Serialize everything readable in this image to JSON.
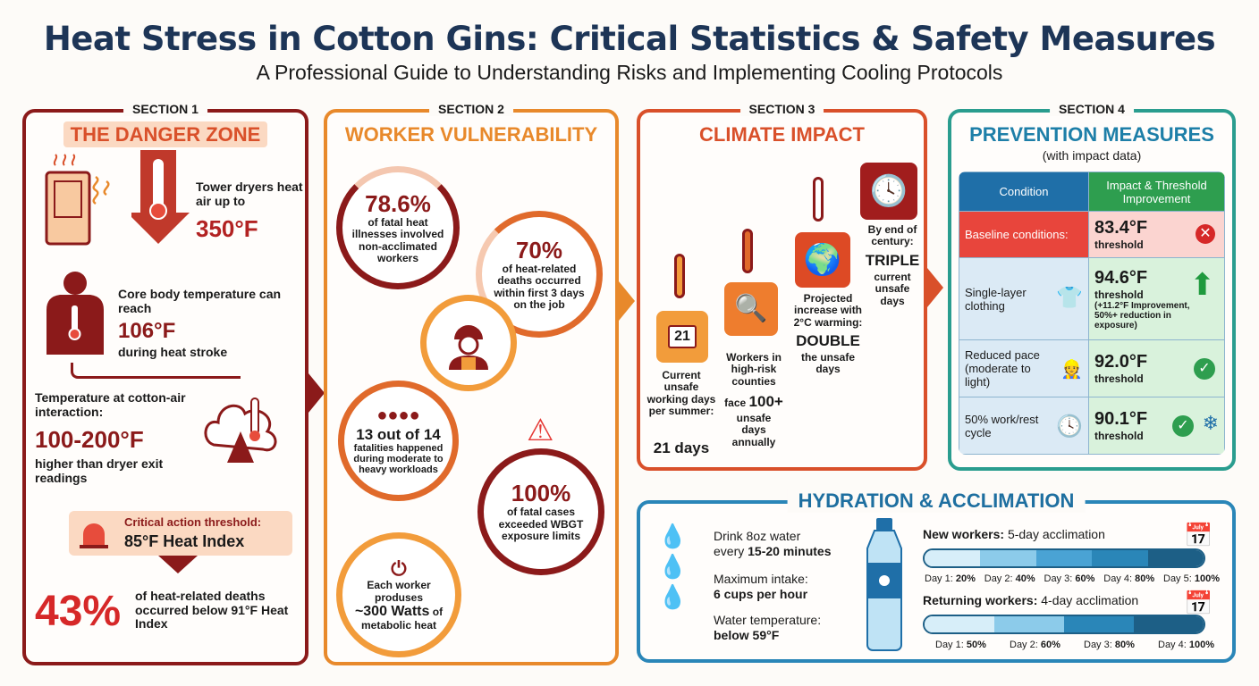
{
  "title": "Heat Stress in Cotton Gins: Critical Statistics & Safety Measures",
  "subtitle": "A Professional Guide to Understanding Risks and Implementing Cooling Protocols",
  "colors": {
    "navy": "#1d3557",
    "dark_red": "#8b1a1a",
    "orange": "#e8892b",
    "red_orange": "#d9502a",
    "blue": "#2a86b8",
    "green": "#2e9e4f"
  },
  "section1": {
    "label": "SECTION 1",
    "heading": "THE DANGER ZONE",
    "dryer": {
      "text": "Tower dryers heat air up to",
      "value": "350°F"
    },
    "body": {
      "text": "Core body temperature can reach",
      "value": "106°F",
      "suffix": "during heat stroke"
    },
    "cotton": {
      "text": "Temperature at cotton-air interaction:",
      "value": "100-200°F",
      "suffix": "higher than dryer exit readings"
    },
    "threshold": {
      "text": "Critical action threshold:",
      "value": "85°F Heat Index"
    },
    "deaths": {
      "value": "43%",
      "text": "of heat-related deaths occurred below 91°F Heat Index"
    }
  },
  "section2": {
    "label": "SECTION 2",
    "heading": "WORKER VULNERABILITY",
    "stats": [
      {
        "value": "78.6%",
        "text": "of fatal heat illnesses involved non-acclimated workers"
      },
      {
        "value": "70%",
        "text": "of heat-related deaths occurred within first 3 days on the job"
      },
      {
        "value": "13 out of 14",
        "text": "fatalities happened during moderate to heavy workloads"
      },
      {
        "value": "100%",
        "text": "of fatal cases exceeded WBGT exposure limits"
      },
      {
        "prefix": "Each worker produses",
        "value": "~300 Watts",
        "suffix": "of",
        "text": "metabolic heat"
      }
    ]
  },
  "section3": {
    "label": "SECTION 3",
    "heading": "CLIMATE IMPACT",
    "calendar_number": "21",
    "steps": [
      {
        "text": "Current unsafe working days per summer:",
        "value": "21 days"
      },
      {
        "text": "Workers in high-risk counties",
        "prefix": "face",
        "value": "100+",
        "suffix": "unsafe days annually"
      },
      {
        "text": "Projected increase with 2°C warming:",
        "value": "DOUBLE",
        "suffix": "the unsafe days"
      },
      {
        "text": "By end of century:",
        "value": "TRIPLE",
        "suffix": "current unsafe days"
      }
    ]
  },
  "section4": {
    "label": "SECTION 4",
    "heading": "PREVENTION MEASURES",
    "subheading": "(with impact data)",
    "columns": [
      "Condition",
      "Impact & Threshold Improvement"
    ],
    "rows": [
      {
        "condition": "Baseline conditions:",
        "value": "83.4°F",
        "unit": "threshold",
        "status": "x-icon"
      },
      {
        "condition": "Single-layer clothing",
        "value": "94.6°F",
        "unit": "threshold",
        "note": "(+11.2°F Improvement, 50%+ reduction in exposure)",
        "status": "up-arrow-icon"
      },
      {
        "condition": "Reduced pace (moderate to light)",
        "value": "92.0°F",
        "unit": "threshold",
        "status": "check-icon"
      },
      {
        "condition": "50% work/rest cycle",
        "value": "90.1°F",
        "unit": "threshold",
        "status": "check-icon"
      }
    ]
  },
  "hydration": {
    "heading": "HYDRATION & ACCLIMATION",
    "tips": [
      {
        "line1": "Drink 8oz water",
        "line2_pre": "every ",
        "line2": "15-20 minutes"
      },
      {
        "line1": "Maximum intake:",
        "line2": "6 cups per hour"
      },
      {
        "line1": "Water temperature:",
        "line2": "below 59°F"
      }
    ],
    "new_workers": {
      "label": "New workers:",
      "value": "5-day acclimation",
      "days": [
        {
          "d": "Day 1:",
          "p": "20%"
        },
        {
          "d": "Day 2:",
          "p": "40%"
        },
        {
          "d": "Day 3:",
          "p": "60%"
        },
        {
          "d": "Day 4:",
          "p": "80%"
        },
        {
          "d": "Day 5:",
          "p": "100%"
        }
      ]
    },
    "returning_workers": {
      "label": "Returning workers:",
      "value": "4-day acclimation",
      "days": [
        {
          "d": "Day 1:",
          "p": "50%"
        },
        {
          "d": "Day 2:",
          "p": "60%"
        },
        {
          "d": "Day 3:",
          "p": "80%"
        },
        {
          "d": "Day 4:",
          "p": "100%"
        }
      ]
    }
  }
}
